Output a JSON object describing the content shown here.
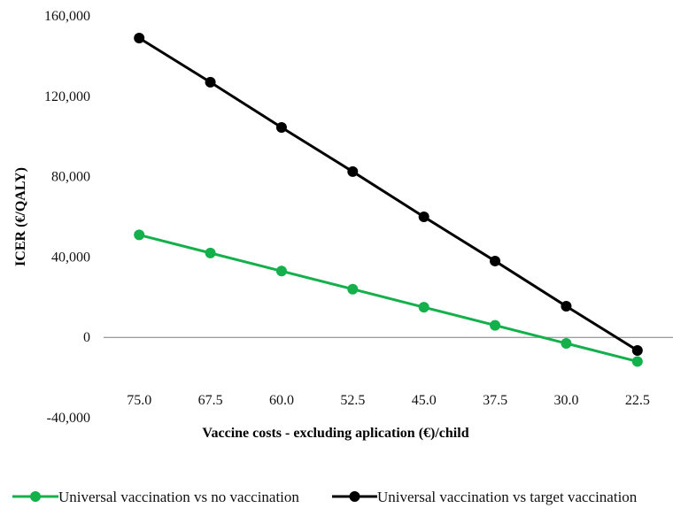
{
  "chart_data": {
    "type": "line",
    "title": "",
    "xlabel": "Vaccine costs - excluding aplication (€)/child",
    "ylabel": "ICER (€/QALY)",
    "categories": [
      "75.0",
      "67.5",
      "60.0",
      "52.5",
      "45.0",
      "37.5",
      "30.0",
      "22.5"
    ],
    "ylim": [
      -40000,
      160000
    ],
    "yticks": [
      -40000,
      0,
      40000,
      80000,
      120000,
      160000
    ],
    "ytick_labels": [
      "-40,000",
      "0",
      "40,000",
      "80,000",
      "120,000",
      "160,000"
    ],
    "grid": false,
    "legend_position": "bottom",
    "series": [
      {
        "name": "Universal vaccination vs no vaccination",
        "color": "#13b04b",
        "values": [
          51000,
          42000,
          33000,
          24000,
          15000,
          6000,
          -3000,
          -12000
        ]
      },
      {
        "name": "Universal vaccination vs target vaccination",
        "color": "#000000",
        "values": [
          149000,
          127000,
          104500,
          82500,
          60000,
          38000,
          15500,
          -6500
        ]
      }
    ]
  }
}
